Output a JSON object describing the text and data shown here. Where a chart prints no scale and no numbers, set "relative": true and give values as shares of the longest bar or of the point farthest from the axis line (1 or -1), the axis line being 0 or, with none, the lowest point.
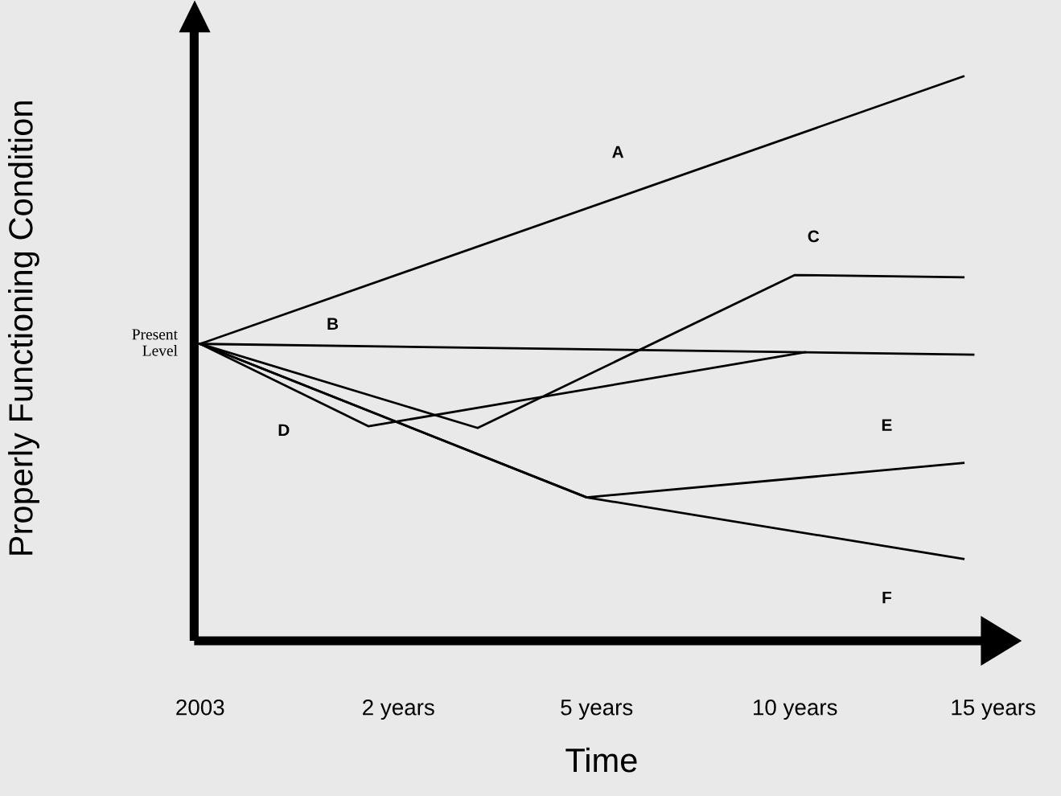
{
  "chart_data": {
    "type": "line",
    "relative": true,
    "xlabel": "Time",
    "ylabel": "Properly Functioning Condition",
    "categories": [
      "2003",
      null,
      null,
      null,
      null,
      null,
      null,
      null,
      null,
      null,
      null,
      null,
      null,
      null,
      null,
      null,
      null,
      null,
      null,
      null,
      "2 years",
      null,
      null,
      null,
      null,
      null,
      null,
      null,
      null,
      null,
      null,
      null,
      null,
      null,
      null,
      null,
      null,
      null,
      null,
      null,
      "5 years",
      null,
      null,
      null,
      null,
      null,
      null,
      null,
      null,
      null,
      null,
      null,
      null,
      null,
      null,
      null,
      null,
      null,
      null,
      null,
      "10 years",
      null,
      null,
      null,
      null,
      null,
      null,
      null,
      null,
      null,
      null,
      null,
      null,
      null,
      null,
      null,
      null,
      null,
      null,
      null,
      "15 years"
    ],
    "grid": false,
    "legend": false,
    "marker": "none",
    "line_style": "solid",
    "series": [
      {
        "name": "A",
        "color": "#000000",
        "values": [
          0.526,
          null,
          null,
          null,
          null,
          null,
          null,
          null,
          null,
          null,
          null,
          null,
          null,
          null,
          null,
          null,
          null,
          null,
          null,
          null,
          null,
          null,
          null,
          null,
          null,
          null,
          null,
          null,
          null,
          null,
          null,
          null,
          null,
          null,
          null,
          null,
          null,
          null,
          null,
          null,
          null,
          null,
          null,
          null,
          null,
          null,
          null,
          null,
          null,
          null,
          null,
          null,
          null,
          null,
          null,
          null,
          null,
          null,
          null,
          null,
          null,
          null,
          null,
          null,
          null,
          null,
          null,
          null,
          null,
          null,
          null,
          null,
          null,
          null,
          null,
          null,
          null,
          1.0,
          null,
          null,
          null
        ]
      },
      {
        "name": "B",
        "color": "#000000",
        "values": [
          0.526,
          null,
          null,
          null,
          null,
          null,
          null,
          null,
          null,
          null,
          null,
          null,
          null,
          null,
          null,
          null,
          null,
          null,
          null,
          null,
          null,
          null,
          null,
          null,
          null,
          null,
          null,
          null,
          null,
          null,
          null,
          null,
          null,
          null,
          null,
          null,
          null,
          null,
          null,
          null,
          null,
          null,
          null,
          null,
          null,
          null,
          null,
          null,
          null,
          null,
          null,
          null,
          null,
          null,
          null,
          null,
          null,
          null,
          null,
          null,
          null,
          null,
          null,
          null,
          null,
          null,
          null,
          null,
          null,
          null,
          null,
          null,
          null,
          null,
          null,
          null,
          null,
          null,
          0.507,
          null,
          null
        ]
      },
      {
        "name": "C",
        "color": "#000000",
        "values": [
          0.526,
          null,
          null,
          null,
          null,
          null,
          null,
          null,
          null,
          null,
          null,
          null,
          null,
          null,
          null,
          null,
          null,
          null,
          null,
          null,
          null,
          null,
          null,
          null,
          null,
          null,
          null,
          null,
          0.377,
          null,
          null,
          null,
          null,
          null,
          null,
          null,
          null,
          null,
          null,
          null,
          null,
          null,
          null,
          null,
          null,
          null,
          null,
          null,
          null,
          null,
          null,
          null,
          null,
          null,
          null,
          null,
          null,
          null,
          null,
          null,
          0.648,
          null,
          null,
          null,
          null,
          null,
          null,
          null,
          null,
          null,
          null,
          null,
          null,
          null,
          null,
          null,
          null,
          0.644,
          null,
          null,
          null
        ]
      },
      {
        "name": "D",
        "color": "#000000",
        "values": [
          0.526,
          null,
          null,
          null,
          null,
          null,
          null,
          null,
          null,
          null,
          null,
          null,
          null,
          null,
          null,
          null,
          null,
          0.38,
          null,
          null,
          null,
          null,
          null,
          null,
          null,
          null,
          null,
          null,
          null,
          null,
          null,
          null,
          null,
          null,
          null,
          null,
          null,
          null,
          null,
          null,
          null,
          null,
          null,
          null,
          null,
          null,
          null,
          null,
          null,
          null,
          null,
          null,
          null,
          null,
          null,
          null,
          null,
          null,
          null,
          null,
          null,
          0.511,
          null,
          null,
          null,
          null,
          null,
          null,
          null,
          null,
          null,
          null,
          null,
          null,
          null,
          null,
          null,
          null,
          null,
          null,
          null
        ]
      },
      {
        "name": "E",
        "color": "#000000",
        "values": [
          0.526,
          null,
          null,
          null,
          null,
          null,
          null,
          null,
          null,
          null,
          null,
          null,
          null,
          null,
          null,
          null,
          null,
          null,
          null,
          null,
          null,
          null,
          null,
          null,
          null,
          null,
          null,
          null,
          null,
          null,
          null,
          null,
          null,
          null,
          null,
          null,
          null,
          null,
          null,
          0.254,
          null,
          null,
          null,
          null,
          null,
          null,
          null,
          null,
          null,
          null,
          null,
          null,
          null,
          null,
          null,
          null,
          null,
          null,
          null,
          null,
          null,
          null,
          null,
          null,
          null,
          null,
          null,
          null,
          null,
          null,
          null,
          null,
          null,
          null,
          null,
          null,
          null,
          0.315,
          null,
          null,
          null
        ]
      },
      {
        "name": "F",
        "color": "#000000",
        "values": [
          0.526,
          null,
          null,
          null,
          null,
          null,
          null,
          null,
          null,
          null,
          null,
          null,
          null,
          null,
          null,
          null,
          null,
          null,
          null,
          null,
          null,
          null,
          null,
          null,
          null,
          null,
          null,
          null,
          null,
          null,
          null,
          null,
          null,
          null,
          null,
          null,
          null,
          null,
          null,
          0.254,
          null,
          null,
          null,
          null,
          null,
          null,
          null,
          null,
          null,
          null,
          null,
          null,
          null,
          null,
          null,
          null,
          null,
          null,
          null,
          null,
          null,
          null,
          null,
          null,
          null,
          null,
          null,
          null,
          null,
          null,
          null,
          null,
          null,
          null,
          null,
          null,
          null,
          0.145,
          null,
          null,
          null
        ]
      }
    ],
    "annotations": [
      "Present\nLevel"
    ]
  }
}
